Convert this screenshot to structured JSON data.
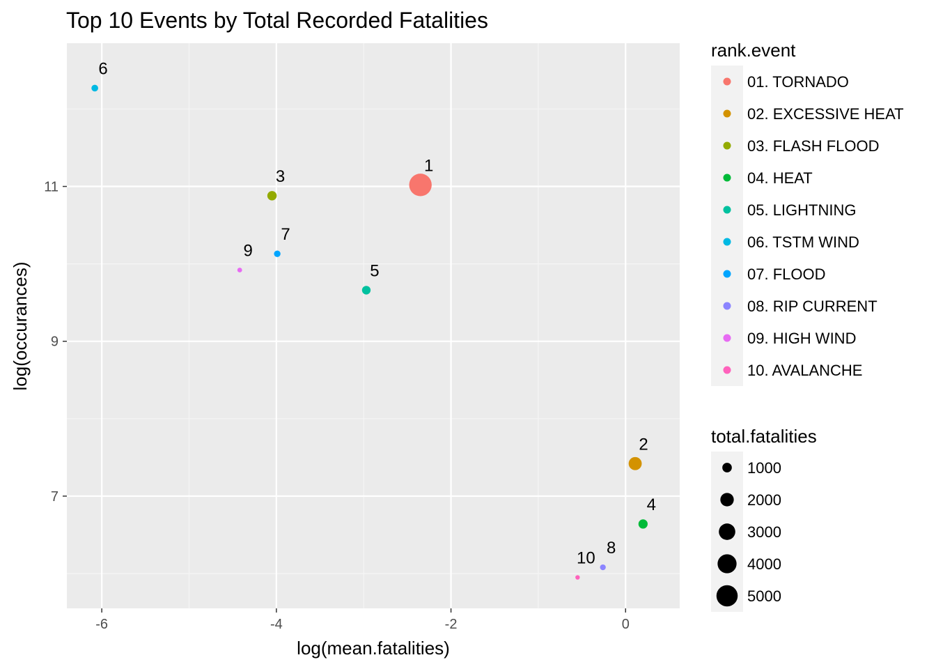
{
  "chart_data": {
    "type": "scatter",
    "title": "Top 10 Events by Total Recorded Fatalities",
    "xlabel": "log(mean.fatalities)",
    "ylabel": "log(occurances)",
    "xlim": [
      -6.4,
      0.62
    ],
    "ylim": [
      5.55,
      12.85
    ],
    "xticks": [
      -6,
      -4,
      -2,
      0
    ],
    "xtick_labels": [
      "-6",
      "-4",
      "-2",
      "0"
    ],
    "yticks": [
      7,
      9,
      11
    ],
    "ytick_labels": [
      "7",
      "9",
      "11"
    ],
    "grid": true,
    "points": [
      {
        "label": "1",
        "event": "01. TORNADO",
        "x": -2.35,
        "y": 11.02,
        "total_fatalities": 5630,
        "color": "#F8766D"
      },
      {
        "label": "2",
        "event": "02. EXCESSIVE HEAT",
        "x": 0.11,
        "y": 7.42,
        "total_fatalities": 1900,
        "color": "#D39200"
      },
      {
        "label": "3",
        "event": "03. FLASH FLOOD",
        "x": -4.05,
        "y": 10.88,
        "total_fatalities": 980,
        "color": "#93AA00"
      },
      {
        "label": "4",
        "event": "04. HEAT",
        "x": 0.2,
        "y": 6.64,
        "total_fatalities": 940,
        "color": "#00BA38"
      },
      {
        "label": "5",
        "event": "05. LIGHTNING",
        "x": -2.97,
        "y": 9.66,
        "total_fatalities": 820,
        "color": "#00C19F"
      },
      {
        "label": "6",
        "event": "06. TSTM WIND",
        "x": -6.08,
        "y": 12.27,
        "total_fatalities": 500,
        "color": "#00B9E3"
      },
      {
        "label": "7",
        "event": "07. FLOOD",
        "x": -3.99,
        "y": 10.13,
        "total_fatalities": 470,
        "color": "#00A5FF"
      },
      {
        "label": "8",
        "event": "08. RIP CURRENT",
        "x": -0.26,
        "y": 6.08,
        "total_fatalities": 370,
        "color": "#8B84FF"
      },
      {
        "label": "9",
        "event": "09. HIGH WIND",
        "x": -4.42,
        "y": 9.92,
        "total_fatalities": 250,
        "color": "#E76BF3"
      },
      {
        "label": "10",
        "event": "10. AVALANCHE",
        "x": -0.55,
        "y": 5.95,
        "total_fatalities": 220,
        "color": "#FF62BC"
      }
    ],
    "legend_color": {
      "title": "rank.event",
      "placement": "right",
      "items": [
        {
          "label": "01. TORNADO",
          "color": "#F8766D"
        },
        {
          "label": "02. EXCESSIVE HEAT",
          "color": "#D39200"
        },
        {
          "label": "03. FLASH FLOOD",
          "color": "#93AA00"
        },
        {
          "label": "04. HEAT",
          "color": "#00BA38"
        },
        {
          "label": "05. LIGHTNING",
          "color": "#00C19F"
        },
        {
          "label": "06. TSTM WIND",
          "color": "#00B9E3"
        },
        {
          "label": "07. FLOOD",
          "color": "#00A5FF"
        },
        {
          "label": "08. RIP CURRENT",
          "color": "#8B84FF"
        },
        {
          "label": "09. HIGH WIND",
          "color": "#E76BF3"
        },
        {
          "label": "10. AVALANCHE",
          "color": "#FF62BC"
        }
      ]
    },
    "legend_size": {
      "title": "total.fatalities",
      "placement": "right",
      "items": [
        {
          "label": "1000",
          "value": 1000
        },
        {
          "label": "2000",
          "value": 2000
        },
        {
          "label": "3000",
          "value": 3000
        },
        {
          "label": "4000",
          "value": 4000
        },
        {
          "label": "5000",
          "value": 5000
        }
      ]
    },
    "colors": {
      "panel_background": "#EBEBEB",
      "grid_major": "#FFFFFF",
      "grid_minor": "#F5F5F5",
      "tick_text": "#4D4D4D",
      "legend_key_background": "#F2F2F2"
    }
  }
}
